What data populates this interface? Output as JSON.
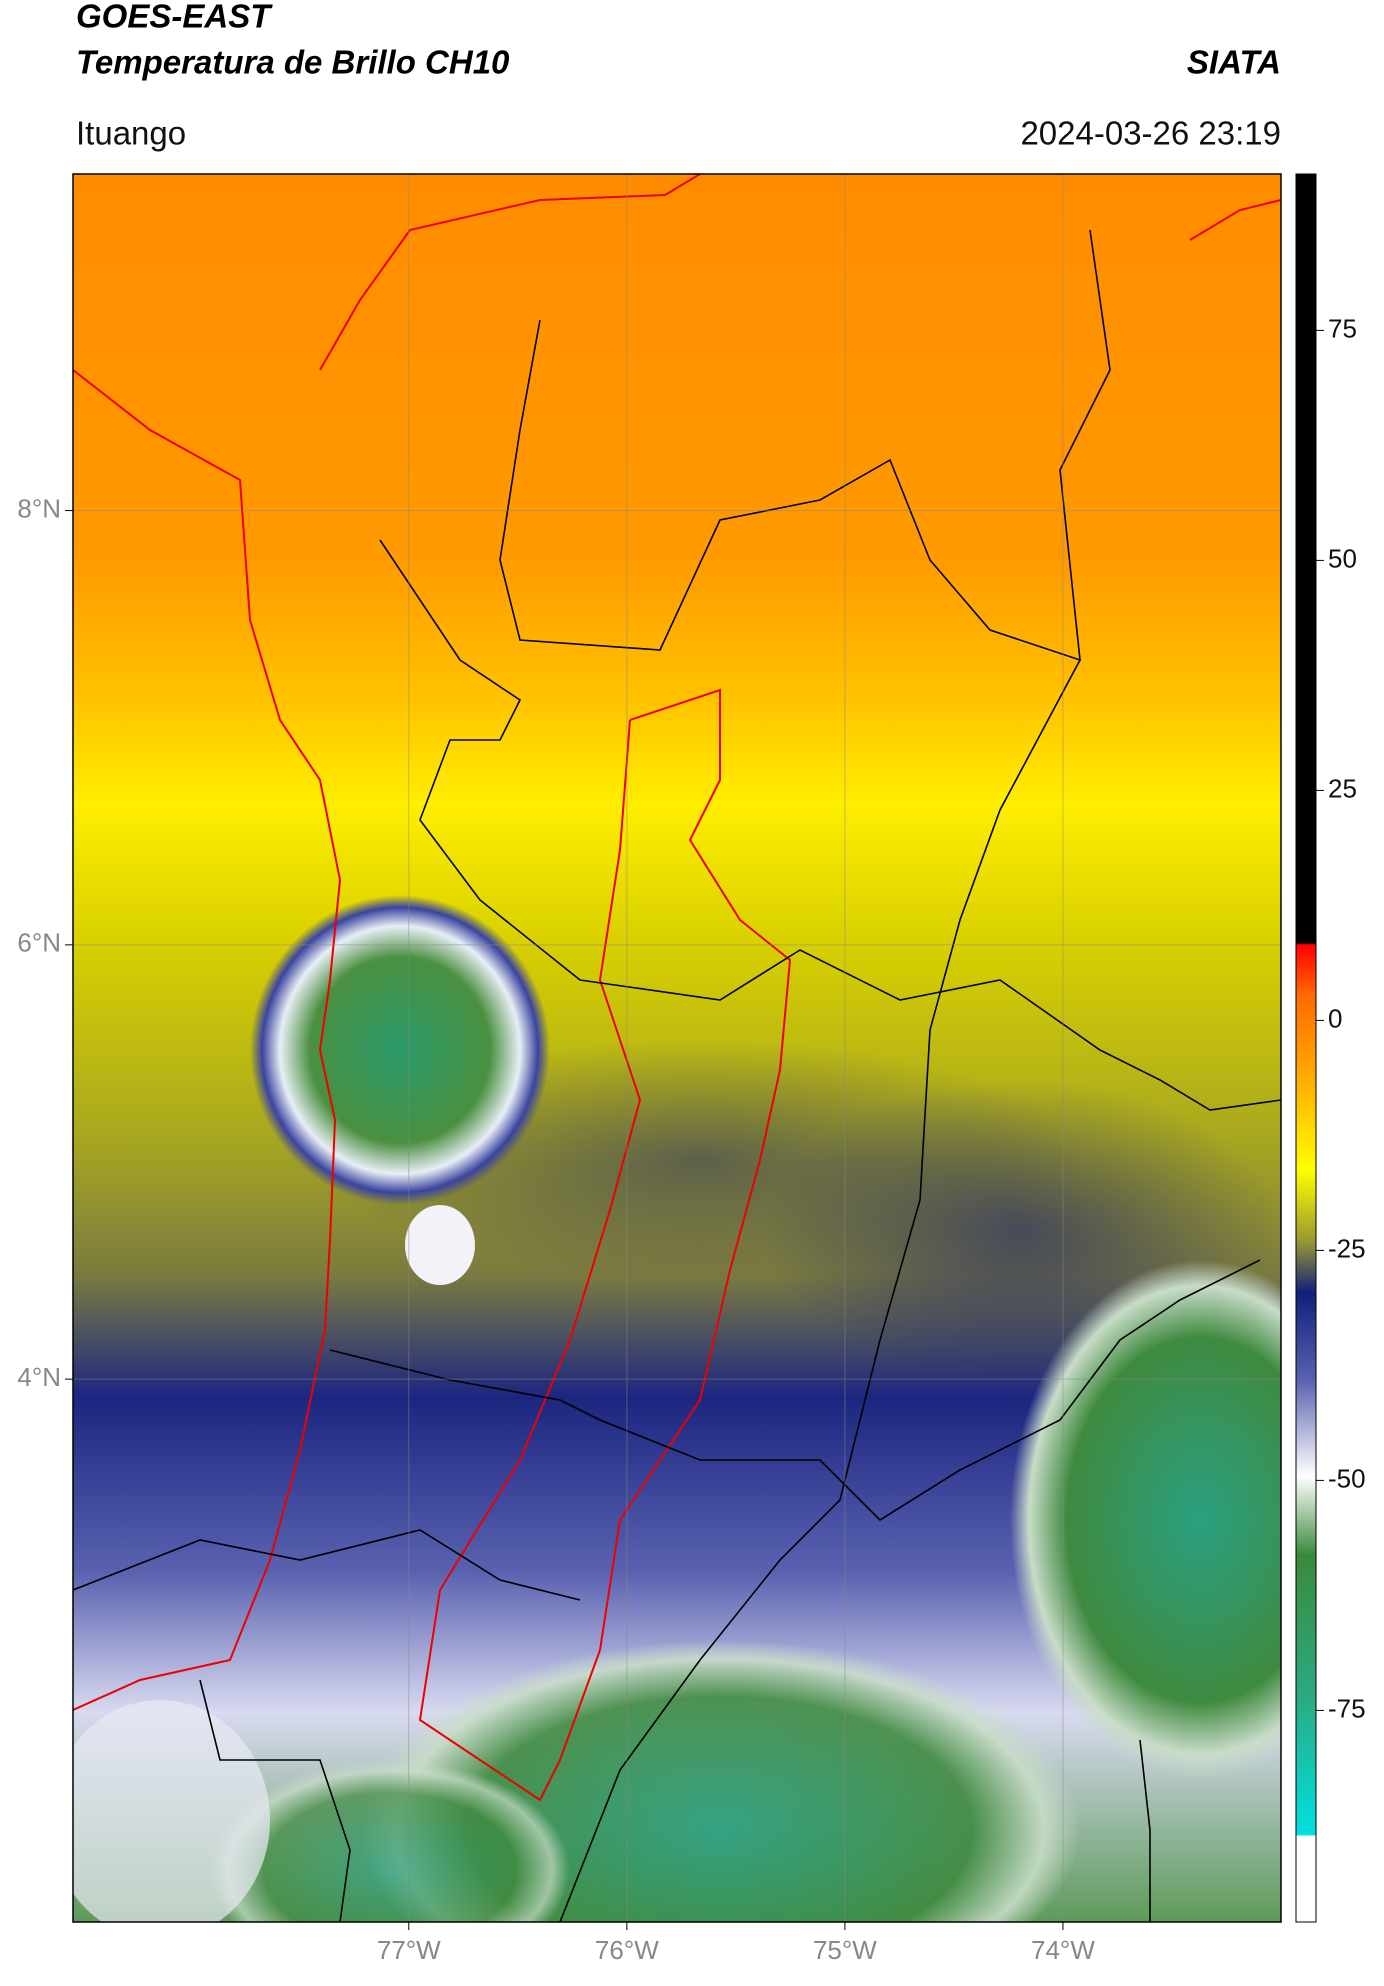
{
  "header": {
    "title": "GOES-EAST",
    "subtitle": "Temperatura de Brillo CH10",
    "brand": "SIATA",
    "location": "Ituango",
    "timestamp": "2024-03-26 23:19"
  },
  "map": {
    "xlim": [
      -78.54,
      -73.0
    ],
    "ylim": [
      1.5,
      9.55
    ],
    "xticks": [
      {
        "value": -77,
        "label": "77°W"
      },
      {
        "value": -76,
        "label": "76°W"
      },
      {
        "value": -75,
        "label": "75°W"
      },
      {
        "value": -74,
        "label": "74°W"
      }
    ],
    "yticks": [
      {
        "value": 8,
        "label": "8°N"
      },
      {
        "value": 6,
        "label": "6°N"
      },
      {
        "value": 4,
        "label": "4°N"
      }
    ]
  },
  "colorbar": {
    "ylim": [
      -98,
      92
    ],
    "yticks": [
      75,
      50,
      25,
      0,
      -25,
      -50,
      -75
    ]
  }
}
